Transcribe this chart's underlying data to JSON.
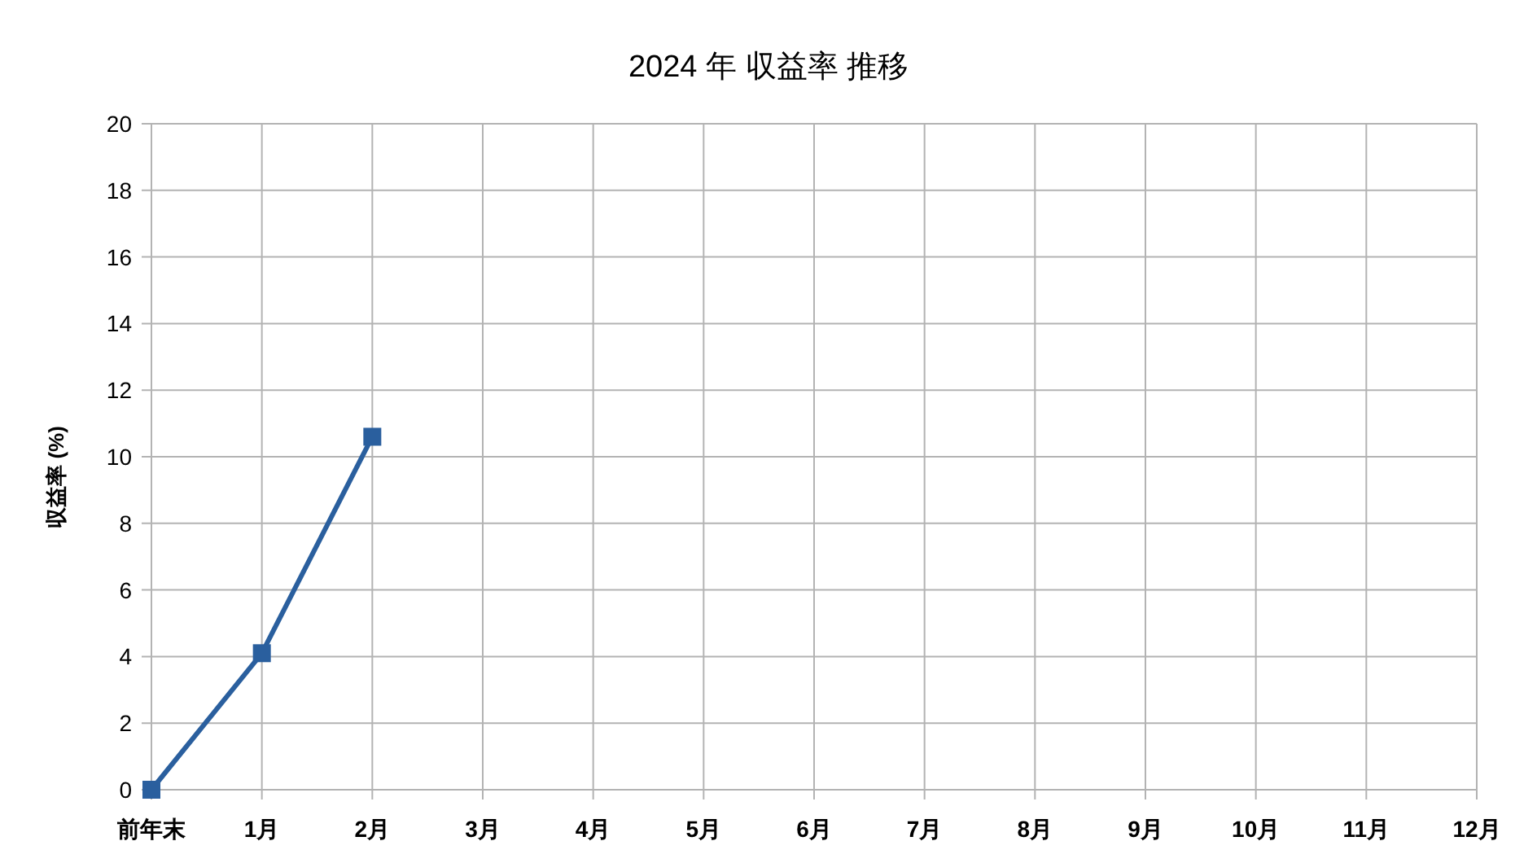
{
  "chart_data": {
    "type": "line",
    "title": "2024 年 収益率 推移",
    "ylabel": "収益率 (%)",
    "categories": [
      "前年末",
      "1月",
      "2月",
      "3月",
      "4月",
      "5月",
      "6月",
      "7月",
      "8月",
      "9月",
      "10月",
      "11月",
      "12月"
    ],
    "series": [
      {
        "color": "#2a5f9e",
        "values": [
          0,
          4.1,
          10.6,
          null,
          null,
          null,
          null,
          null,
          null,
          null,
          null,
          null,
          null
        ]
      }
    ],
    "ylim": [
      0,
      20
    ],
    "yticks": [
      0,
      2,
      4,
      6,
      8,
      10,
      12,
      14,
      16,
      18,
      20
    ],
    "grid": true,
    "marker": "square",
    "line_style": "solid"
  }
}
